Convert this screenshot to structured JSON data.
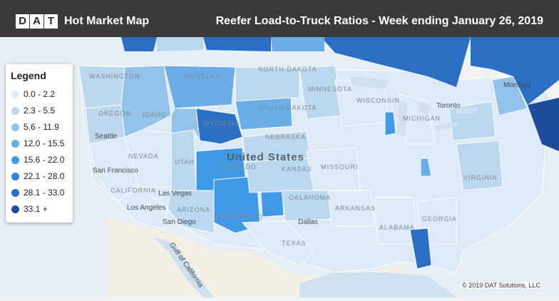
{
  "header": {
    "logo_letters": [
      "D",
      "A",
      "T"
    ],
    "app_title": "Hot Market Map",
    "map_title": "Reefer Load-to-Truck Ratios - Week ending January 26, 2019"
  },
  "legend": {
    "title": "Legend",
    "items": [
      {
        "label": "0.0 - 2.2",
        "color": "#dcebf7"
      },
      {
        "label": "2.3 - 5.5",
        "color": "#bcd8ef"
      },
      {
        "label": "5.6 - 11.9",
        "color": "#93c2ea"
      },
      {
        "label": "12.0 - 15.5",
        "color": "#6aaee8"
      },
      {
        "label": "15.6 - 22.0",
        "color": "#3f99e6"
      },
      {
        "label": "22.1 - 28.0",
        "color": "#2b86dd"
      },
      {
        "label": "28.1 - 33.0",
        "color": "#2a6fc4"
      },
      {
        "label": "33.1 +",
        "color": "#1f4c9a"
      }
    ]
  },
  "map": {
    "country_label": "United States",
    "region_labels": [
      "WASHINGTON",
      "OREGON",
      "IDAHO",
      "MONTANA",
      "WYOMING",
      "NEVADA",
      "UTAH",
      "COLORADO",
      "CALIFORNIA",
      "ARIZONA",
      "NEW MEXICO",
      "NORTH DAKOTA",
      "SOUTH DAKOTA",
      "NEBRASKA",
      "KANSAS",
      "OKLAHOMA",
      "TEXAS",
      "MINNESOTA",
      "WISCONSIN",
      "MISSOURI",
      "ARKANSAS",
      "ALABAMA",
      "GEORGIA",
      "VIRGINIA",
      "MICHIGAN"
    ],
    "city_labels": [
      "Seattle",
      "San Francisco",
      "Las Vegas",
      "Los Angeles",
      "San Diego",
      "Dallas",
      "Toronto",
      "Montreal",
      "Gulf of California"
    ]
  },
  "copyright": "© 2019 DAT Solutions, LLC"
}
